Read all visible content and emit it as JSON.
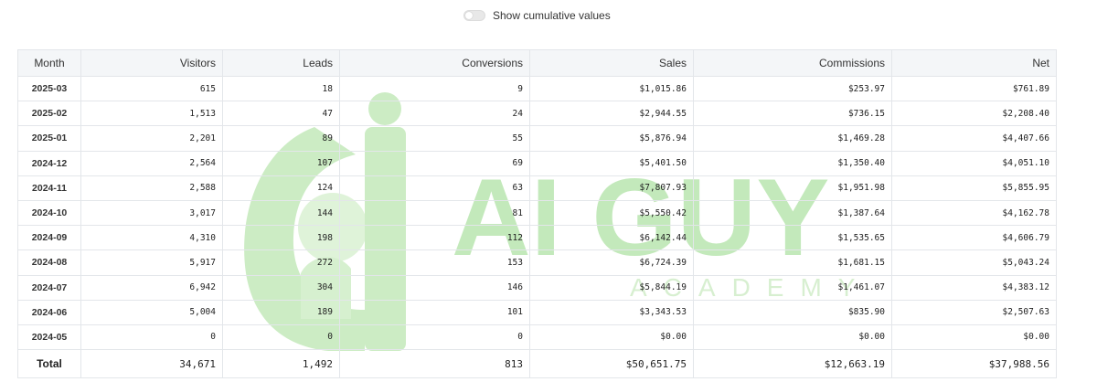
{
  "toggle": {
    "label": "Show cumulative values",
    "checked": false
  },
  "watermark": {
    "title": "AI GUY",
    "subtitle": "ACADEMY"
  },
  "columns": [
    "Month",
    "Visitors",
    "Leads",
    "Conversions",
    "Sales",
    "Commissions",
    "Net"
  ],
  "rows": [
    {
      "month": "2025-03",
      "visitors": "615",
      "leads": "18",
      "conversions": "9",
      "sales": "$1,015.86",
      "commissions": "$253.97",
      "net": "$761.89"
    },
    {
      "month": "2025-02",
      "visitors": "1,513",
      "leads": "47",
      "conversions": "24",
      "sales": "$2,944.55",
      "commissions": "$736.15",
      "net": "$2,208.40"
    },
    {
      "month": "2025-01",
      "visitors": "2,201",
      "leads": "89",
      "conversions": "55",
      "sales": "$5,876.94",
      "commissions": "$1,469.28",
      "net": "$4,407.66"
    },
    {
      "month": "2024-12",
      "visitors": "2,564",
      "leads": "107",
      "conversions": "69",
      "sales": "$5,401.50",
      "commissions": "$1,350.40",
      "net": "$4,051.10"
    },
    {
      "month": "2024-11",
      "visitors": "2,588",
      "leads": "124",
      "conversions": "63",
      "sales": "$7,807.93",
      "commissions": "$1,951.98",
      "net": "$5,855.95"
    },
    {
      "month": "2024-10",
      "visitors": "3,017",
      "leads": "144",
      "conversions": "81",
      "sales": "$5,550.42",
      "commissions": "$1,387.64",
      "net": "$4,162.78"
    },
    {
      "month": "2024-09",
      "visitors": "4,310",
      "leads": "198",
      "conversions": "112",
      "sales": "$6,142.44",
      "commissions": "$1,535.65",
      "net": "$4,606.79"
    },
    {
      "month": "2024-08",
      "visitors": "5,917",
      "leads": "272",
      "conversions": "153",
      "sales": "$6,724.39",
      "commissions": "$1,681.15",
      "net": "$5,043.24"
    },
    {
      "month": "2024-07",
      "visitors": "6,942",
      "leads": "304",
      "conversions": "146",
      "sales": "$5,844.19",
      "commissions": "$1,461.07",
      "net": "$4,383.12"
    },
    {
      "month": "2024-06",
      "visitors": "5,004",
      "leads": "189",
      "conversions": "101",
      "sales": "$3,343.53",
      "commissions": "$835.90",
      "net": "$2,507.63"
    },
    {
      "month": "2024-05",
      "visitors": "0",
      "leads": "0",
      "conversions": "0",
      "sales": "$0.00",
      "commissions": "$0.00",
      "net": "$0.00"
    }
  ],
  "total": {
    "month": "Total",
    "visitors": "34,671",
    "leads": "1,492",
    "conversions": "813",
    "sales": "$50,651.75",
    "commissions": "$12,663.19",
    "net": "$37,988.56"
  }
}
